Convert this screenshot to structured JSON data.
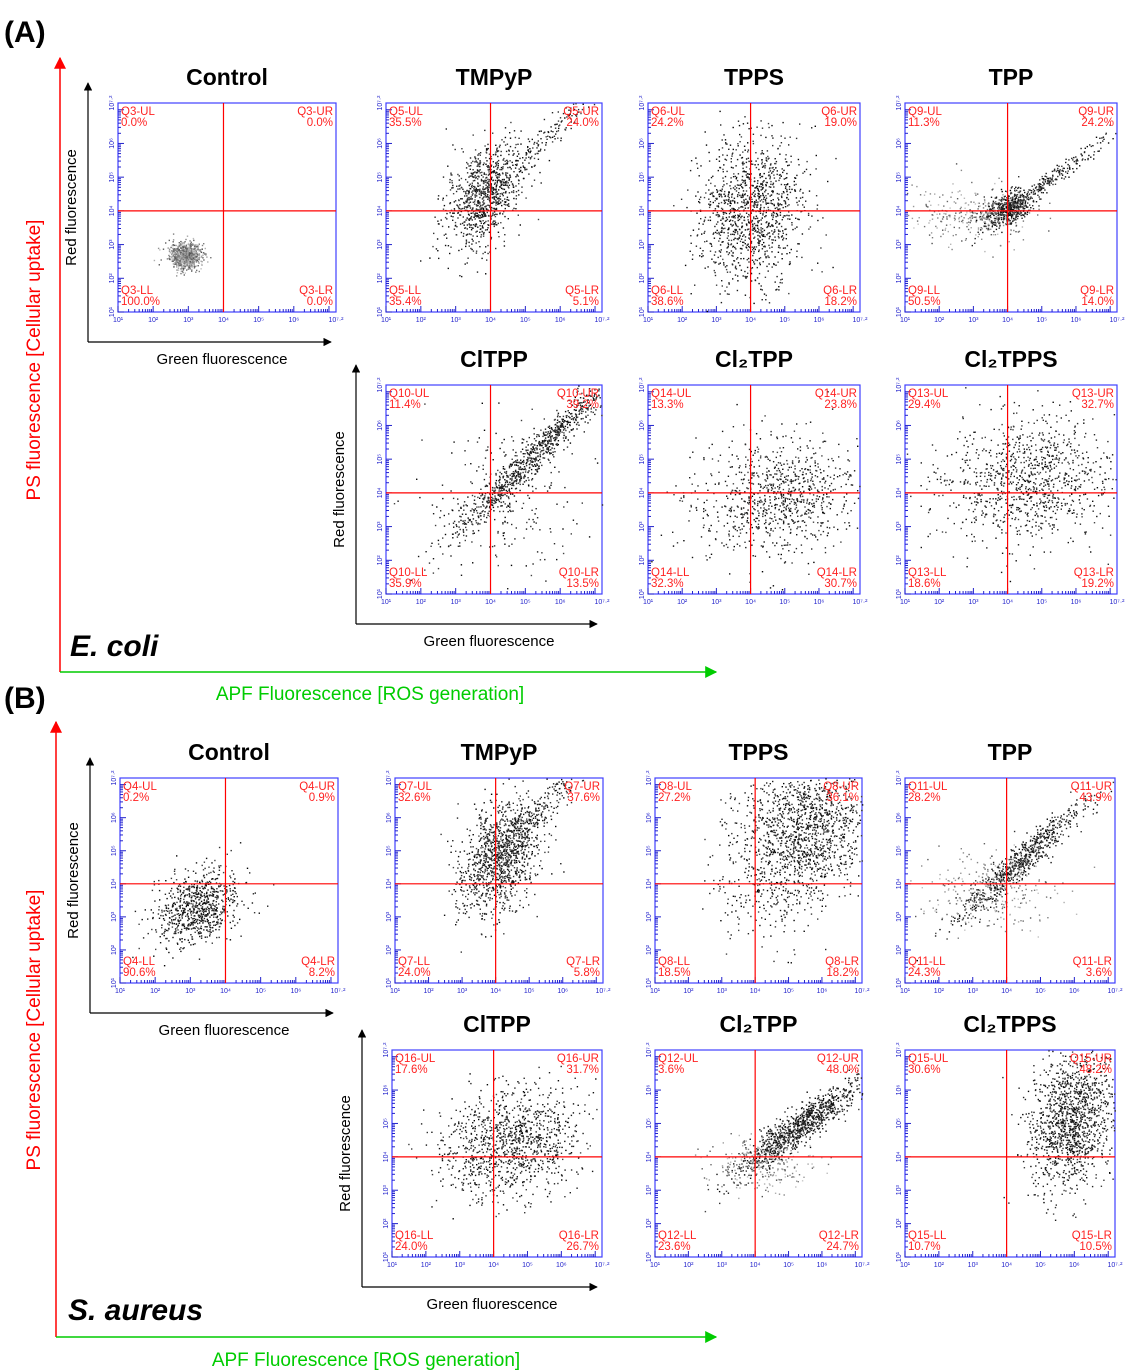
{
  "figure": {
    "panels": [
      {
        "label": "(A)",
        "organism": "E. coli",
        "y_axis_label": "PS fluorescence [Cellular uptake]",
        "x_axis_label": "APF Fluorescence [ROS generation]",
        "colors": {
          "y_arrow": "#ff0000",
          "x_arrow": "#00cc00"
        }
      },
      {
        "label": "(B)",
        "organism": "S. aureus",
        "y_axis_label": "PS fluorescence [Cellular uptake]",
        "x_axis_label": "APF Fluorescence [ROS generation]",
        "colors": {
          "y_arrow": "#ff0000",
          "x_arrow": "#00cc00"
        }
      }
    ]
  },
  "chart_data": [
    {
      "type": "scatter",
      "panel": "A",
      "title": "Control",
      "xlabel": "Green fluorescence",
      "ylabel": "Red fluorescence",
      "xlim_log10": [
        1,
        7.2
      ],
      "ylim_log10": [
        1,
        7.2
      ],
      "gate_log10": [
        4,
        4
      ],
      "quadrants": {
        "UL": {
          "name": "Q3-UL",
          "value": "0.0%"
        },
        "UR": {
          "name": "Q3-UR",
          "value": "0.0%"
        },
        "LL": {
          "name": "Q3-LL",
          "value": "100.0%"
        },
        "LR": {
          "name": "Q3-LR",
          "value": "0.0%"
        }
      }
    },
    {
      "type": "scatter",
      "panel": "A",
      "title": "TMPyP",
      "xlabel": "",
      "ylabel": "",
      "xlim_log10": [
        1,
        7.2
      ],
      "ylim_log10": [
        1,
        7.2
      ],
      "gate_log10": [
        4,
        4
      ],
      "quadrants": {
        "UL": {
          "name": "Q5-UL",
          "value": "35.5%"
        },
        "UR": {
          "name": "Q5-UR",
          "value": "24.0%"
        },
        "LL": {
          "name": "Q5-LL",
          "value": "35.4%"
        },
        "LR": {
          "name": "Q5-LR",
          "value": "5.1%"
        }
      }
    },
    {
      "type": "scatter",
      "panel": "A",
      "title": "TPPS",
      "xlabel": "",
      "ylabel": "",
      "xlim_log10": [
        1,
        7.2
      ],
      "ylim_log10": [
        1,
        7.2
      ],
      "gate_log10": [
        4,
        4
      ],
      "quadrants": {
        "UL": {
          "name": "Q6-UL",
          "value": "24.2%"
        },
        "UR": {
          "name": "Q6-UR",
          "value": "19.0%"
        },
        "LL": {
          "name": "Q6-LL",
          "value": "38.6%"
        },
        "LR": {
          "name": "Q6-LR",
          "value": "18.2%"
        }
      }
    },
    {
      "type": "scatter",
      "panel": "A",
      "title": "TPP",
      "xlabel": "",
      "ylabel": "",
      "xlim_log10": [
        1,
        7.2
      ],
      "ylim_log10": [
        1,
        7.2
      ],
      "gate_log10": [
        4,
        4
      ],
      "quadrants": {
        "UL": {
          "name": "Q9-UL",
          "value": "11.3%"
        },
        "UR": {
          "name": "Q9-UR",
          "value": "24.2%"
        },
        "LL": {
          "name": "Q9-LL",
          "value": "50.5%"
        },
        "LR": {
          "name": "Q9-LR",
          "value": "14.0%"
        }
      }
    },
    {
      "type": "scatter",
      "panel": "A",
      "title": "ClTPP",
      "xlabel": "Green fluorescence",
      "ylabel": "Red fluorescence",
      "xlim_log10": [
        1,
        7.2
      ],
      "ylim_log10": [
        1,
        7.2
      ],
      "gate_log10": [
        4,
        4
      ],
      "quadrants": {
        "UL": {
          "name": "Q10-UL",
          "value": "11.4%"
        },
        "UR": {
          "name": "Q10-UR",
          "value": "39.2%"
        },
        "LL": {
          "name": "Q10-LL",
          "value": "35.9%"
        },
        "LR": {
          "name": "Q10-LR",
          "value": "13.5%"
        }
      }
    },
    {
      "type": "scatter",
      "panel": "A",
      "title": "Cl2TPP",
      "xlabel": "",
      "ylabel": "",
      "xlim_log10": [
        1,
        7.2
      ],
      "ylim_log10": [
        1,
        7.2
      ],
      "gate_log10": [
        4,
        4
      ],
      "quadrants": {
        "UL": {
          "name": "Q14-UL",
          "value": "13.3%"
        },
        "UR": {
          "name": "Q14-UR",
          "value": "23.8%"
        },
        "LL": {
          "name": "Q14-LL",
          "value": "32.3%"
        },
        "LR": {
          "name": "Q14-LR",
          "value": "30.7%"
        }
      }
    },
    {
      "type": "scatter",
      "panel": "A",
      "title": "Cl2TPPS",
      "xlabel": "",
      "ylabel": "",
      "xlim_log10": [
        1,
        7.2
      ],
      "ylim_log10": [
        1,
        7.2
      ],
      "gate_log10": [
        4,
        4
      ],
      "quadrants": {
        "UL": {
          "name": "Q13-UL",
          "value": "29.4%"
        },
        "UR": {
          "name": "Q13-UR",
          "value": "32.7%"
        },
        "LL": {
          "name": "Q13-LL",
          "value": "18.6%"
        },
        "LR": {
          "name": "Q13-LR",
          "value": "19.2%"
        }
      }
    },
    {
      "type": "scatter",
      "panel": "B",
      "title": "Control",
      "xlabel": "Green fluorescence",
      "ylabel": "Red fluorescence",
      "xlim_log10": [
        1,
        7.2
      ],
      "ylim_log10": [
        1,
        7.2
      ],
      "gate_log10": [
        4,
        4
      ],
      "quadrants": {
        "UL": {
          "name": "Q4-UL",
          "value": "0.2%"
        },
        "UR": {
          "name": "Q4-UR",
          "value": "0.9%"
        },
        "LL": {
          "name": "Q4-LL",
          "value": "90.6%"
        },
        "LR": {
          "name": "Q4-LR",
          "value": "8.2%"
        }
      }
    },
    {
      "type": "scatter",
      "panel": "B",
      "title": "TMPyP",
      "xlabel": "",
      "ylabel": "",
      "xlim_log10": [
        1,
        7.2
      ],
      "ylim_log10": [
        1,
        7.2
      ],
      "gate_log10": [
        4,
        4
      ],
      "quadrants": {
        "UL": {
          "name": "Q7-UL",
          "value": "32.6%"
        },
        "UR": {
          "name": "Q7-UR",
          "value": "37.6%"
        },
        "LL": {
          "name": "Q7-LL",
          "value": "24.0%"
        },
        "LR": {
          "name": "Q7-LR",
          "value": "5.8%"
        }
      }
    },
    {
      "type": "scatter",
      "panel": "B",
      "title": "TPPS",
      "xlabel": "",
      "ylabel": "",
      "xlim_log10": [
        1,
        7.2
      ],
      "ylim_log10": [
        1,
        7.2
      ],
      "gate_log10": [
        4,
        4
      ],
      "quadrants": {
        "UL": {
          "name": "Q8-UL",
          "value": "27.2%"
        },
        "UR": {
          "name": "Q8-UR",
          "value": "36.1%"
        },
        "LL": {
          "name": "Q8-LL",
          "value": "18.5%"
        },
        "LR": {
          "name": "Q8-LR",
          "value": "18.2%"
        }
      }
    },
    {
      "type": "scatter",
      "panel": "B",
      "title": "TPP",
      "xlabel": "",
      "ylabel": "",
      "xlim_log10": [
        1,
        7.2
      ],
      "ylim_log10": [
        1,
        7.2
      ],
      "gate_log10": [
        4,
        4
      ],
      "quadrants": {
        "UL": {
          "name": "Q11-UL",
          "value": "28.2%"
        },
        "UR": {
          "name": "Q11-UR",
          "value": "43.9%"
        },
        "LL": {
          "name": "Q11-LL",
          "value": "24.3%"
        },
        "LR": {
          "name": "Q11-LR",
          "value": "3.6%"
        }
      }
    },
    {
      "type": "scatter",
      "panel": "B",
      "title": "ClTPP",
      "xlabel": "Green fluorescence",
      "ylabel": "Red fluorescence",
      "xlim_log10": [
        1,
        7.2
      ],
      "ylim_log10": [
        1,
        7.2
      ],
      "gate_log10": [
        4,
        4
      ],
      "quadrants": {
        "UL": {
          "name": "Q16-UL",
          "value": "17.6%"
        },
        "UR": {
          "name": "Q16-UR",
          "value": "31.7%"
        },
        "LL": {
          "name": "Q16-LL",
          "value": "24.0%"
        },
        "LR": {
          "name": "Q16-LR",
          "value": "26.7%"
        }
      }
    },
    {
      "type": "scatter",
      "panel": "B",
      "title": "Cl2TPP",
      "xlabel": "",
      "ylabel": "",
      "xlim_log10": [
        1,
        7.2
      ],
      "ylim_log10": [
        1,
        7.2
      ],
      "gate_log10": [
        4,
        4
      ],
      "quadrants": {
        "UL": {
          "name": "Q12-UL",
          "value": "3.6%"
        },
        "UR": {
          "name": "Q12-UR",
          "value": "48.0%"
        },
        "LL": {
          "name": "Q12-LL",
          "value": "23.6%"
        },
        "LR": {
          "name": "Q12-LR",
          "value": "24.7%"
        }
      }
    },
    {
      "type": "scatter",
      "panel": "B",
      "title": "Cl2TPPS",
      "xlabel": "",
      "ylabel": "",
      "xlim_log10": [
        1,
        7.2
      ],
      "ylim_log10": [
        1,
        7.2
      ],
      "gate_log10": [
        4,
        4
      ],
      "quadrants": {
        "UL": {
          "name": "Q15-UL",
          "value": "30.6%"
        },
        "UR": {
          "name": "Q15-UR",
          "value": "48.2%"
        },
        "LL": {
          "name": "Q15-LL",
          "value": "10.7%"
        },
        "LR": {
          "name": "Q15-LR",
          "value": "10.5%"
        }
      }
    }
  ]
}
